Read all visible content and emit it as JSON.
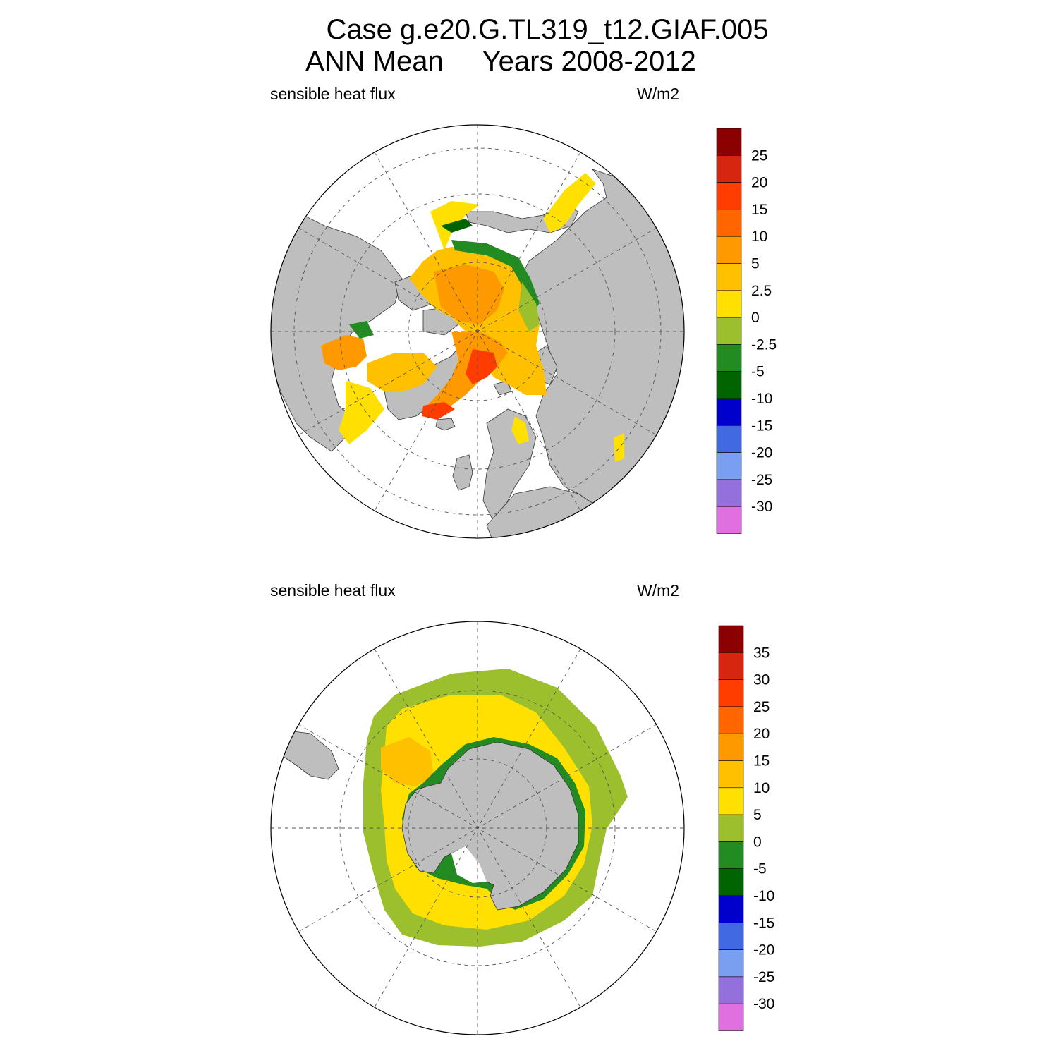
{
  "title": {
    "line1": "Case g.e20.G.TL319_t12.GIAF.005",
    "line2": "ANN Mean     Years 2008-2012"
  },
  "panels": [
    {
      "id": "north",
      "hemisphere": "northern",
      "left_label": "sensible heat flux",
      "right_label": "W/m2",
      "colorbar": {
        "labels": [
          "25",
          "20",
          "15",
          "10",
          "5",
          "2.5",
          "0",
          "-2.5",
          "-5",
          "-10",
          "-15",
          "-20",
          "-25",
          "-30"
        ],
        "colors": [
          "#8b0000",
          "#d7260f",
          "#ff3d00",
          "#ff6600",
          "#ff9900",
          "#ffc000",
          "#ffe000",
          "#9bbf2d",
          "#228b22",
          "#006400",
          "#0000cd",
          "#4169e1",
          "#7b9ff0",
          "#9370db",
          "#e070e0"
        ]
      }
    },
    {
      "id": "south",
      "hemisphere": "southern",
      "left_label": "sensible heat flux",
      "right_label": "W/m2",
      "colorbar": {
        "labels": [
          "35",
          "30",
          "25",
          "20",
          "15",
          "10",
          "5",
          "0",
          "-5",
          "-10",
          "-15",
          "-20",
          "-25",
          "-30"
        ],
        "colors": [
          "#8b0000",
          "#d7260f",
          "#ff3d00",
          "#ff6600",
          "#ff9900",
          "#ffc000",
          "#ffe000",
          "#9bbf2d",
          "#228b22",
          "#006400",
          "#0000cd",
          "#4169e1",
          "#7b9ff0",
          "#9370db",
          "#e070e0"
        ]
      }
    }
  ],
  "colors": {
    "land": "#bebebe",
    "missing": "#ffffff",
    "grid": "#555555"
  }
}
